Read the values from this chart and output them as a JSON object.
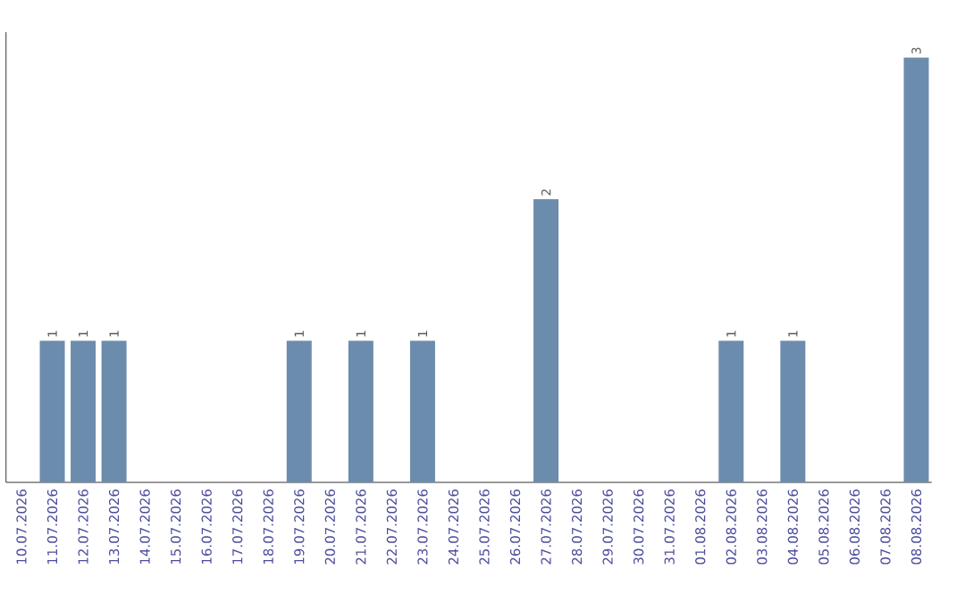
{
  "chart_data": {
    "type": "bar",
    "categories": [
      "10.07.2026",
      "11.07.2026",
      "12.07.2026",
      "13.07.2026",
      "14.07.2026",
      "15.07.2026",
      "16.07.2026",
      "17.07.2026",
      "18.07.2026",
      "19.07.2026",
      "20.07.2026",
      "21.07.2026",
      "22.07.2026",
      "23.07.2026",
      "24.07.2026",
      "25.07.2026",
      "26.07.2026",
      "27.07.2026",
      "28.07.2026",
      "29.07.2026",
      "30.07.2026",
      "31.07.2026",
      "01.08.2026",
      "02.08.2026",
      "03.08.2026",
      "04.08.2026",
      "05.08.2026",
      "06.08.2026",
      "07.08.2026",
      "08.08.2026"
    ],
    "values": [
      0,
      1,
      1,
      1,
      0,
      0,
      0,
      0,
      0,
      1,
      0,
      1,
      0,
      1,
      0,
      0,
      0,
      2,
      0,
      0,
      0,
      0,
      0,
      1,
      0,
      1,
      0,
      0,
      0,
      3
    ],
    "value_labels": [
      null,
      "1",
      "1",
      "1",
      null,
      null,
      null,
      null,
      null,
      "1",
      null,
      "1",
      null,
      "1",
      null,
      null,
      null,
      "2",
      null,
      null,
      null,
      null,
      null,
      "1",
      null,
      "1",
      null,
      null,
      null,
      "3"
    ],
    "color": "#6b8cad"
  }
}
